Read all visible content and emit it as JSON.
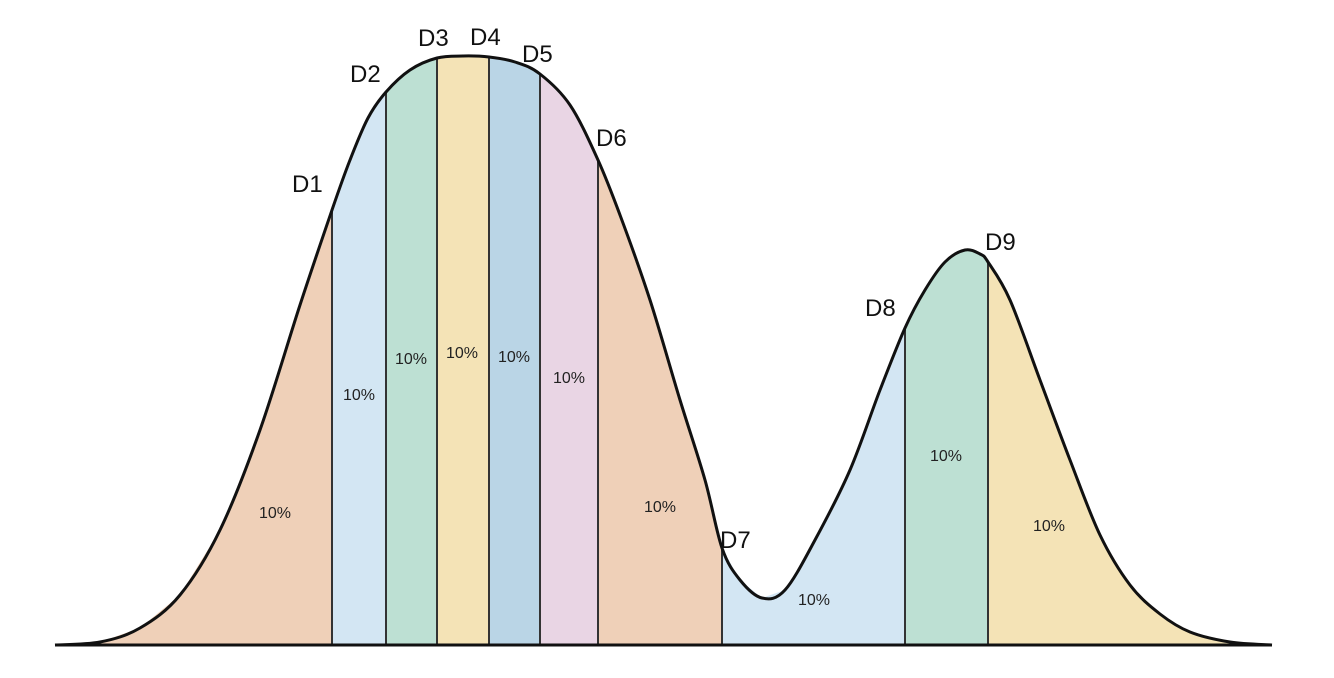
{
  "chart_data": {
    "type": "area",
    "title": "",
    "xlabel": "",
    "ylabel": "",
    "decile_labels": [
      "D1",
      "D2",
      "D3",
      "D4",
      "D5",
      "D6",
      "D7",
      "D8",
      "D9"
    ],
    "segment_labels": [
      "10%",
      "10%",
      "10%",
      "10%",
      "10%",
      "10%",
      "10%",
      "10%",
      "10%",
      "10%"
    ],
    "segment_colors": [
      "#efd0b8",
      "#d3e6f3",
      "#bde0d3",
      "#f4e3b6",
      "#bad5e6",
      "#e9d5e4",
      "#efd0b8",
      "#d3e6f3",
      "#bde0d3",
      "#f4e3b6"
    ],
    "outline_color": "#111111",
    "baseline_color": "#111111"
  }
}
